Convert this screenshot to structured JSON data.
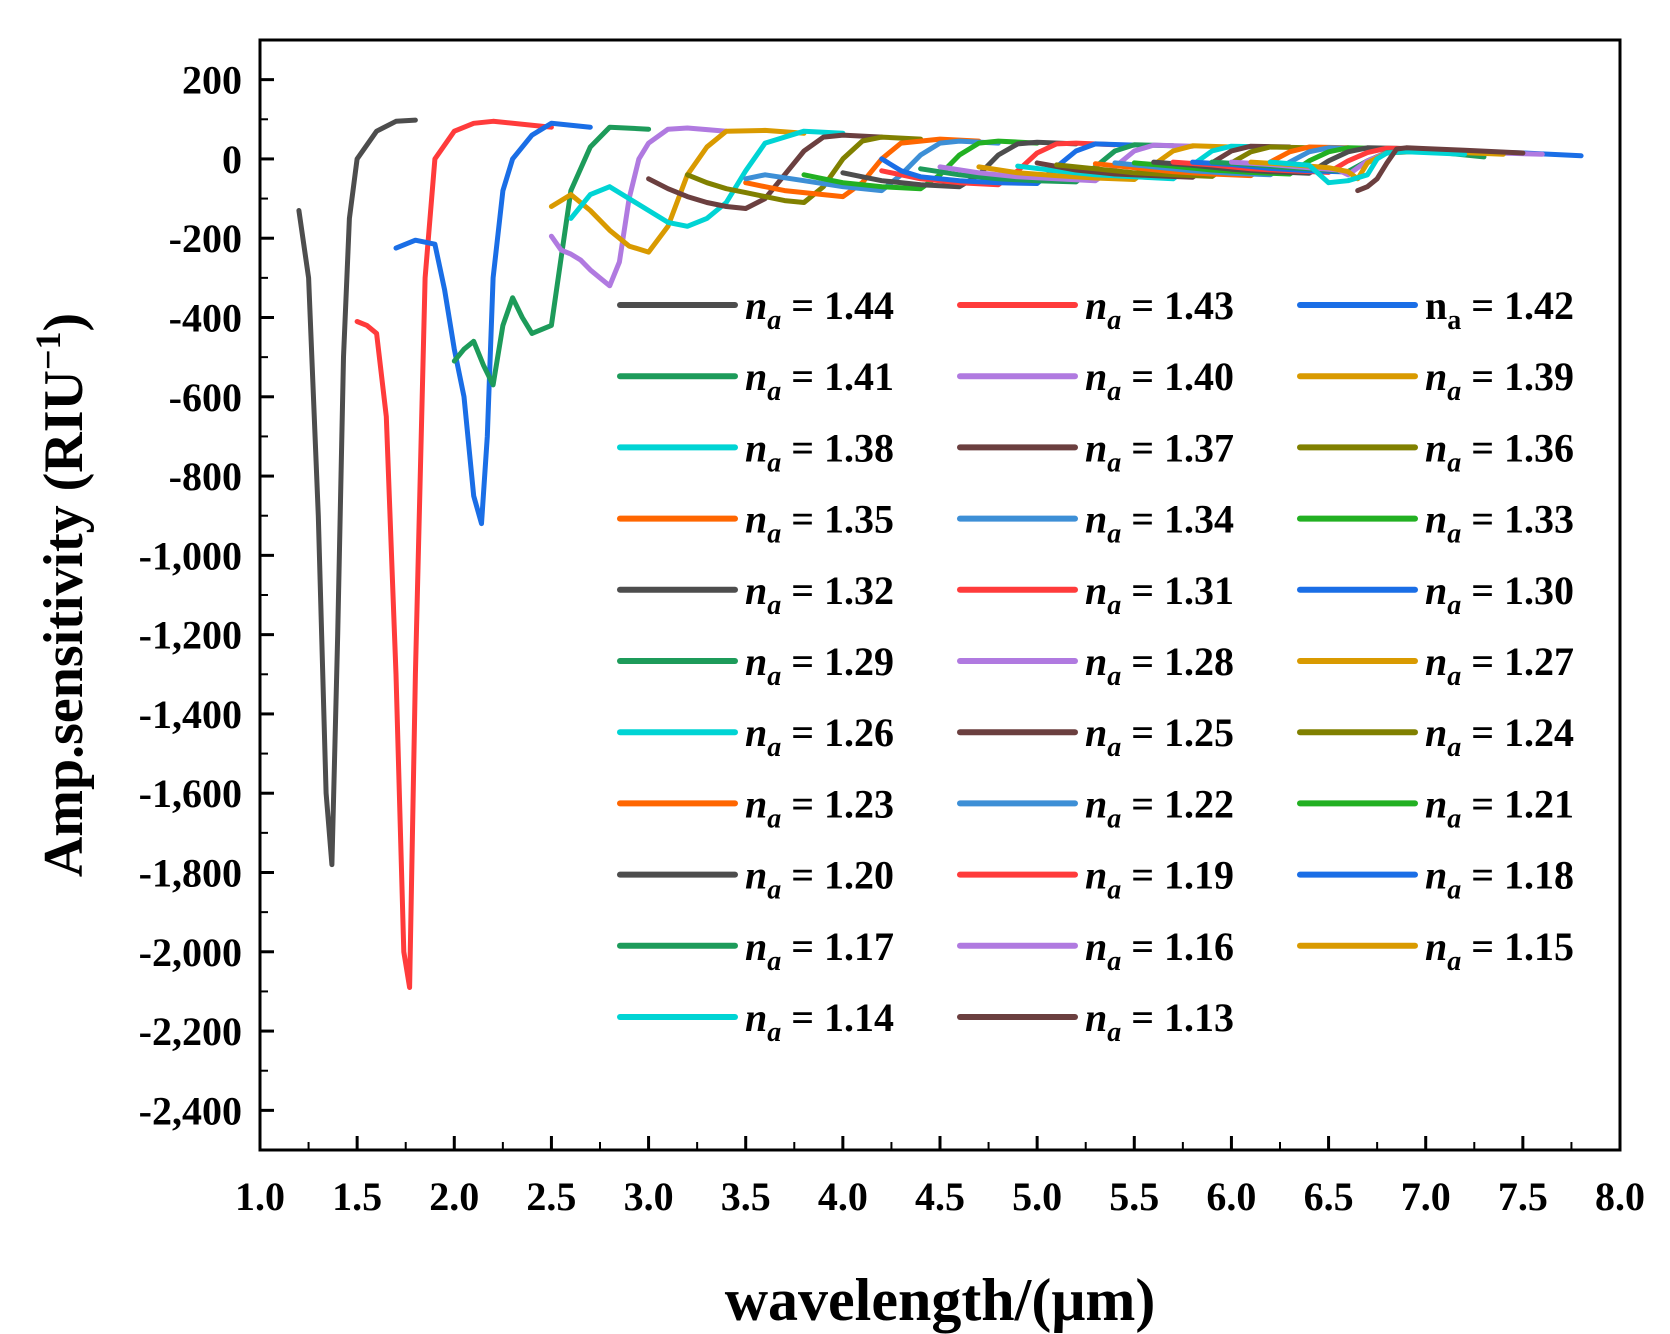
{
  "chart_data": {
    "type": "line",
    "xlabel": "wavelength/(μm)",
    "ylabel": "Amp.sensitivity (RIU",
    "ylabel_sup": "−1",
    "ylabel_close": ")",
    "xlim": [
      1.0,
      8.0
    ],
    "ylim": [
      -2500,
      300
    ],
    "xticks": [
      1.0,
      1.5,
      2.0,
      2.5,
      3.0,
      3.5,
      4.0,
      4.5,
      5.0,
      5.5,
      6.0,
      6.5,
      7.0,
      7.5,
      8.0
    ],
    "xtick_labels": [
      "1.0",
      "1.5",
      "2.0",
      "2.5",
      "3.0",
      "3.5",
      "4.0",
      "4.5",
      "5.0",
      "5.5",
      "6.0",
      "6.5",
      "7.0",
      "7.5",
      "8.0"
    ],
    "yticks": [
      200,
      0,
      -200,
      -400,
      -600,
      -800,
      -1000,
      -1200,
      -1400,
      -1600,
      -1800,
      -2000,
      -2200,
      -2400
    ],
    "ytick_labels": [
      "200",
      "0",
      "-200",
      "-400",
      "-600",
      "-800",
      "-1,000",
      "-1,200",
      "-1,400",
      "-1,600",
      "-1,800",
      "-2,000",
      "-2,200",
      "-2,400"
    ],
    "legend_position": "center-right",
    "series": [
      {
        "name": "1.44",
        "color": "#4d4d4d",
        "italic": true,
        "x": [
          1.2,
          1.25,
          1.3,
          1.34,
          1.37,
          1.4,
          1.43,
          1.46,
          1.5,
          1.6,
          1.7,
          1.8
        ],
        "y": [
          -130,
          -300,
          -900,
          -1600,
          -1780,
          -1200,
          -500,
          -150,
          0,
          70,
          95,
          98
        ]
      },
      {
        "name": "1.43",
        "color": "#ff3b3b",
        "italic": true,
        "x": [
          1.5,
          1.55,
          1.6,
          1.65,
          1.7,
          1.74,
          1.77,
          1.8,
          1.85,
          1.9,
          2.0,
          2.1,
          2.2,
          2.4,
          2.5
        ],
        "y": [
          -410,
          -420,
          -440,
          -650,
          -1300,
          -2000,
          -2090,
          -1300,
          -300,
          0,
          70,
          90,
          95,
          85,
          80
        ]
      },
      {
        "name": "1.42",
        "color": "#1a6ee6",
        "italic": false,
        "x": [
          1.7,
          1.8,
          1.9,
          1.95,
          2.0,
          2.05,
          2.1,
          2.14,
          2.17,
          2.2,
          2.25,
          2.3,
          2.4,
          2.5,
          2.7
        ],
        "y": [
          -225,
          -205,
          -215,
          -330,
          -480,
          -600,
          -850,
          -920,
          -700,
          -300,
          -80,
          0,
          60,
          90,
          80
        ]
      },
      {
        "name": "1.41",
        "color": "#1d9b5a",
        "italic": true,
        "x": [
          2.0,
          2.05,
          2.1,
          2.15,
          2.2,
          2.25,
          2.3,
          2.35,
          2.4,
          2.45,
          2.5,
          2.55,
          2.6,
          2.7,
          2.8,
          3.0
        ],
        "y": [
          -510,
          -480,
          -460,
          -520,
          -570,
          -420,
          -350,
          -400,
          -440,
          -430,
          -420,
          -250,
          -80,
          30,
          80,
          75
        ]
      },
      {
        "name": "1.40",
        "color": "#b07ae0",
        "italic": true,
        "x": [
          2.5,
          2.55,
          2.6,
          2.65,
          2.7,
          2.75,
          2.8,
          2.85,
          2.9,
          2.95,
          3.0,
          3.1,
          3.2,
          3.4
        ],
        "y": [
          -195,
          -230,
          -240,
          -255,
          -280,
          -300,
          -320,
          -260,
          -100,
          0,
          40,
          75,
          78,
          70
        ]
      },
      {
        "name": "1.39",
        "color": "#d99a00",
        "italic": true,
        "x": [
          2.5,
          2.6,
          2.7,
          2.8,
          2.9,
          3.0,
          3.1,
          3.2,
          3.3,
          3.4,
          3.6,
          3.8
        ],
        "y": [
          -120,
          -90,
          -130,
          -180,
          -220,
          -235,
          -170,
          -40,
          30,
          70,
          72,
          65
        ]
      },
      {
        "name": "1.38",
        "color": "#00d4d4",
        "italic": true,
        "x": [
          2.6,
          2.7,
          2.8,
          2.9,
          3.0,
          3.1,
          3.2,
          3.3,
          3.4,
          3.5,
          3.6,
          3.8,
          4.0
        ],
        "y": [
          -150,
          -90,
          -70,
          -100,
          -130,
          -160,
          -170,
          -150,
          -110,
          -30,
          40,
          70,
          65
        ]
      },
      {
        "name": "1.37",
        "color": "#6b3f3f",
        "italic": true,
        "x": [
          3.0,
          3.1,
          3.2,
          3.3,
          3.4,
          3.5,
          3.6,
          3.7,
          3.8,
          3.9,
          4.0,
          4.2
        ],
        "y": [
          -50,
          -75,
          -95,
          -110,
          -120,
          -125,
          -100,
          -40,
          20,
          55,
          60,
          55
        ]
      },
      {
        "name": "1.36",
        "color": "#808000",
        "italic": true,
        "x": [
          3.2,
          3.3,
          3.4,
          3.5,
          3.6,
          3.7,
          3.8,
          3.9,
          4.0,
          4.1,
          4.2,
          4.4
        ],
        "y": [
          -40,
          -60,
          -75,
          -85,
          -95,
          -105,
          -110,
          -70,
          0,
          45,
          55,
          50
        ]
      },
      {
        "name": "1.35",
        "color": "#ff6600",
        "italic": true,
        "x": [
          3.5,
          3.6,
          3.7,
          3.8,
          3.9,
          4.0,
          4.1,
          4.2,
          4.3,
          4.5,
          4.7
        ],
        "y": [
          -60,
          -70,
          -80,
          -85,
          -90,
          -95,
          -60,
          0,
          40,
          50,
          45
        ]
      },
      {
        "name": "1.34",
        "color": "#3d8fd6",
        "italic": true,
        "x": [
          3.5,
          3.6,
          3.8,
          4.0,
          4.1,
          4.2,
          4.3,
          4.4,
          4.5,
          4.6,
          4.8
        ],
        "y": [
          -50,
          -40,
          -55,
          -70,
          -75,
          -80,
          -40,
          10,
          40,
          45,
          40
        ]
      },
      {
        "name": "1.33",
        "color": "#22b022",
        "italic": true,
        "x": [
          3.8,
          3.9,
          4.0,
          4.2,
          4.4,
          4.5,
          4.6,
          4.7,
          4.8,
          5.0
        ],
        "y": [
          -40,
          -50,
          -60,
          -70,
          -75,
          -40,
          10,
          40,
          45,
          40
        ]
      },
      {
        "name": "1.32",
        "color": "#4d4d4d",
        "italic": true,
        "x": [
          4.0,
          4.1,
          4.2,
          4.4,
          4.6,
          4.7,
          4.8,
          4.9,
          5.0,
          5.2
        ],
        "y": [
          -35,
          -45,
          -55,
          -65,
          -70,
          -40,
          10,
          38,
          42,
          38
        ]
      },
      {
        "name": "1.31",
        "color": "#ff3b3b",
        "italic": true,
        "x": [
          4.2,
          4.3,
          4.4,
          4.6,
          4.8,
          4.9,
          5.0,
          5.1,
          5.2,
          5.4
        ],
        "y": [
          -30,
          -40,
          -50,
          -60,
          -65,
          -30,
          15,
          38,
          40,
          36
        ]
      },
      {
        "name": "1.30",
        "color": "#1a6ee6",
        "italic": true,
        "x": [
          4.2,
          4.3,
          4.4,
          4.6,
          4.8,
          5.0,
          5.1,
          5.2,
          5.3,
          5.5
        ],
        "y": [
          0,
          -30,
          -45,
          -55,
          -60,
          -62,
          -20,
          20,
          38,
          35
        ]
      },
      {
        "name": "1.29",
        "color": "#1d9b5a",
        "italic": true,
        "x": [
          4.4,
          4.6,
          4.8,
          5.0,
          5.2,
          5.3,
          5.4,
          5.5,
          5.7
        ],
        "y": [
          -25,
          -40,
          -50,
          -55,
          -58,
          -20,
          20,
          36,
          33
        ]
      },
      {
        "name": "1.28",
        "color": "#b07ae0",
        "italic": true,
        "x": [
          4.5,
          4.7,
          4.9,
          5.1,
          5.3,
          5.4,
          5.5,
          5.6,
          5.8
        ],
        "y": [
          -20,
          -35,
          -45,
          -50,
          -55,
          -20,
          20,
          35,
          32
        ]
      },
      {
        "name": "1.27",
        "color": "#d99a00",
        "italic": true,
        "x": [
          4.7,
          4.9,
          5.1,
          5.3,
          5.5,
          5.6,
          5.7,
          5.8,
          6.0
        ],
        "y": [
          -20,
          -35,
          -42,
          -48,
          -52,
          -15,
          20,
          33,
          30
        ]
      },
      {
        "name": "1.26",
        "color": "#00d4d4",
        "italic": true,
        "x": [
          4.9,
          5.1,
          5.3,
          5.5,
          5.7,
          5.8,
          5.9,
          6.0,
          6.2
        ],
        "y": [
          -18,
          -30,
          -40,
          -45,
          -50,
          -15,
          20,
          32,
          30
        ]
      },
      {
        "name": "1.25",
        "color": "#6b3f3f",
        "italic": true,
        "x": [
          5.0,
          5.2,
          5.4,
          5.6,
          5.8,
          5.9,
          6.0,
          6.1,
          6.3
        ],
        "y": [
          -10,
          -28,
          -38,
          -42,
          -46,
          -10,
          20,
          32,
          30
        ]
      },
      {
        "name": "1.24",
        "color": "#808000",
        "italic": true,
        "x": [
          5.1,
          5.3,
          5.5,
          5.7,
          5.9,
          6.0,
          6.1,
          6.2,
          6.4
        ],
        "y": [
          -15,
          -25,
          -35,
          -40,
          -44,
          -10,
          18,
          30,
          28
        ]
      },
      {
        "name": "1.23",
        "color": "#ff6600",
        "italic": true,
        "x": [
          5.3,
          5.5,
          5.7,
          5.9,
          6.1,
          6.2,
          6.3,
          6.4,
          6.6
        ],
        "y": [
          -12,
          -22,
          -32,
          -38,
          -42,
          -8,
          18,
          30,
          28
        ]
      },
      {
        "name": "1.22",
        "color": "#3d8fd6",
        "italic": true,
        "x": [
          5.4,
          5.6,
          5.8,
          6.0,
          6.2,
          6.3,
          6.4,
          6.5,
          6.7
        ],
        "y": [
          -10,
          -20,
          -30,
          -36,
          -40,
          -8,
          18,
          28,
          26
        ]
      },
      {
        "name": "1.21",
        "color": "#22b022",
        "italic": true,
        "x": [
          5.5,
          5.7,
          5.9,
          6.1,
          6.3,
          6.4,
          6.5,
          6.6,
          6.8
        ],
        "y": [
          -10,
          -18,
          -28,
          -34,
          -38,
          -5,
          18,
          28,
          26
        ]
      },
      {
        "name": "1.20",
        "color": "#4d4d4d",
        "italic": true,
        "x": [
          5.6,
          5.8,
          6.0,
          6.2,
          6.4,
          6.5,
          6.6,
          6.7,
          6.9
        ],
        "y": [
          -8,
          -16,
          -26,
          -32,
          -36,
          -5,
          18,
          28,
          26
        ]
      },
      {
        "name": "1.19",
        "color": "#ff3b3b",
        "italic": true,
        "x": [
          5.7,
          5.9,
          6.1,
          6.3,
          6.5,
          6.6,
          6.7,
          6.8,
          7.0
        ],
        "y": [
          -8,
          -15,
          -25,
          -30,
          -34,
          -5,
          16,
          27,
          25
        ]
      },
      {
        "name": "1.18",
        "color": "#1a6ee6",
        "italic": true,
        "x": [
          5.8,
          6.0,
          6.2,
          6.4,
          6.6,
          6.7,
          6.8,
          7.0,
          7.5,
          7.8
        ],
        "y": [
          -8,
          -14,
          -24,
          -30,
          -33,
          -5,
          16,
          22,
          15,
          8
        ]
      },
      {
        "name": "1.17",
        "color": "#1d9b5a",
        "italic": true,
        "x": [
          5.9,
          6.1,
          6.3,
          6.5,
          6.6,
          6.7,
          6.8,
          7.0,
          7.3
        ],
        "y": [
          -8,
          -14,
          -22,
          -28,
          -32,
          -5,
          16,
          20,
          5
        ]
      },
      {
        "name": "1.16",
        "color": "#b07ae0",
        "italic": true,
        "x": [
          6.0,
          6.2,
          6.4,
          6.55,
          6.6,
          6.7,
          6.8,
          7.0,
          7.6
        ],
        "y": [
          -8,
          -14,
          -22,
          -28,
          -40,
          -5,
          15,
          20,
          12
        ]
      },
      {
        "name": "1.15",
        "color": "#d99a00",
        "italic": true,
        "x": [
          6.1,
          6.3,
          6.5,
          6.6,
          6.65,
          6.7,
          6.8,
          7.0,
          7.4
        ],
        "y": [
          -8,
          -14,
          -22,
          -32,
          -50,
          -10,
          15,
          20,
          12
        ]
      },
      {
        "name": "1.14",
        "color": "#00d4d4",
        "italic": true,
        "x": [
          6.2,
          6.4,
          6.5,
          6.6,
          6.7,
          6.75,
          6.8,
          6.9,
          7.2
        ],
        "y": [
          -8,
          -16,
          -60,
          -55,
          -40,
          0,
          15,
          18,
          12
        ]
      },
      {
        "name": "1.13",
        "color": "#6b3f3f",
        "italic": true,
        "x": [
          6.65,
          6.7,
          6.75,
          6.8,
          6.85,
          6.9,
          7.0,
          7.2,
          7.5
        ],
        "y": [
          -80,
          -70,
          -50,
          -10,
          25,
          28,
          26,
          22,
          15
        ]
      }
    ]
  }
}
